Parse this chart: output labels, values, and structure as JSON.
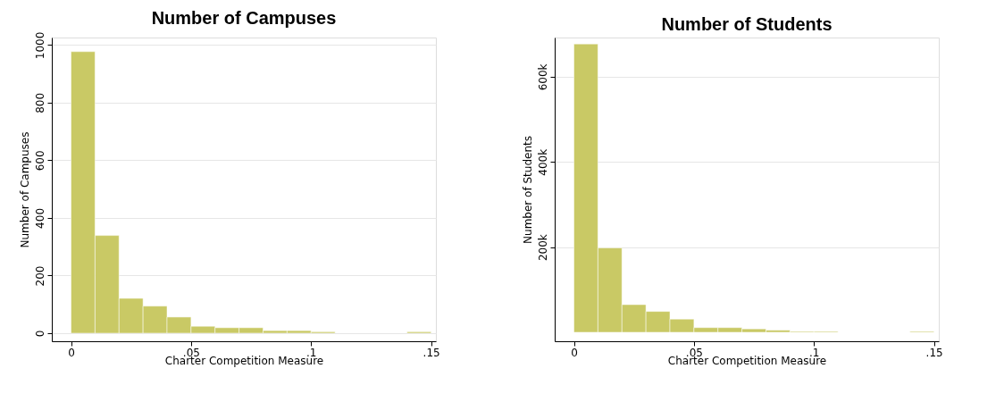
{
  "chart_data": [
    {
      "type": "histogram",
      "title": "Number of Campuses",
      "xlabel": "Charter Competition Measure",
      "ylabel": "Number of Campuses",
      "bins": [
        0,
        0.01,
        0.02,
        0.03,
        0.04,
        0.05,
        0.06,
        0.07,
        0.08,
        0.09,
        0.1,
        0.11,
        0.12,
        0.13,
        0.14,
        0.15
      ],
      "values": [
        977,
        339,
        121,
        94,
        56,
        24,
        19,
        19,
        9,
        9,
        5,
        0,
        0,
        0,
        5
      ],
      "color": "#c9c965",
      "xlim": [
        -0.008,
        0.152
      ],
      "ylim": [
        -28,
        1026
      ],
      "xticks": [
        0,
        {
          "value": 0.05,
          "label": ".05"
        },
        {
          "value": 0.1,
          "label": ".1"
        },
        {
          "value": 0.15,
          "label": ".15"
        }
      ],
      "yticks": [
        0,
        200,
        400,
        600,
        800,
        1000
      ],
      "grid": "y"
    },
    {
      "type": "histogram",
      "title": "Number of Students",
      "xlabel": "Charter Competition Measure",
      "ylabel": "Number of Students",
      "bins": [
        0,
        0.01,
        0.02,
        0.03,
        0.04,
        0.05,
        0.06,
        0.07,
        0.08,
        0.09,
        0.1,
        0.11,
        0.12,
        0.13,
        0.14,
        0.15
      ],
      "values": [
        677000,
        198000,
        65000,
        49000,
        31000,
        11000,
        11000,
        8000,
        5000,
        2000,
        2000,
        0,
        0,
        0,
        2000
      ],
      "color": "#c9c965",
      "xlim": [
        -0.008,
        0.152
      ],
      "ylim": [
        -21000,
        692000
      ],
      "xticks": [
        0,
        {
          "value": 0.05,
          "label": ".05"
        },
        {
          "value": 0.1,
          "label": ".1"
        },
        {
          "value": 0.15,
          "label": ".15"
        }
      ],
      "yticks": [
        {
          "value": 200000,
          "label": "200k"
        },
        {
          "value": 400000,
          "label": "400k"
        },
        {
          "value": 600000,
          "label": "600k"
        }
      ],
      "grid": "y"
    }
  ]
}
